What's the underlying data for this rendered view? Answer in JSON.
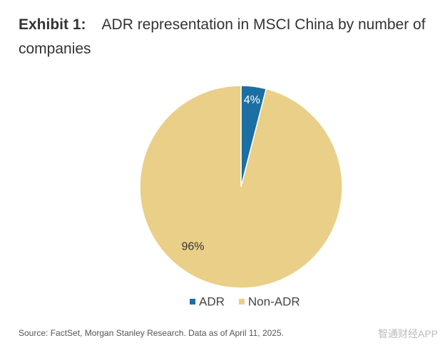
{
  "chart_data": {
    "type": "pie",
    "title_prefix": "Exhibit 1:",
    "title": "ADR representation in MSCI China by number of companies",
    "categories": [
      "ADR",
      "Non-ADR"
    ],
    "values": [
      4,
      96
    ],
    "value_labels": [
      "4%",
      "96%"
    ],
    "colors": [
      "#1b6fa3",
      "#e9cf87"
    ],
    "legend": "bottom",
    "source": "Source: FactSet, Morgan Stanley Research. Data as of April 11, 2025.",
    "watermark": "智通财经APP"
  }
}
